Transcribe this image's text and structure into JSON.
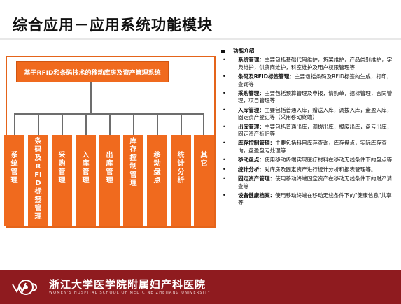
{
  "page": {
    "title": "综合应用－应用系统功能模块"
  },
  "diagram": {
    "banner": "基于RFID和条码技术的移动库房及资产管理系统",
    "modules": [
      "系统管理",
      "条码及RFID标签管理",
      "采购管理",
      "入库管理",
      "出库管理",
      "库存控制管理",
      "移动盘点",
      "统计分析",
      "其它"
    ],
    "color": "#f06a1e"
  },
  "description": {
    "heading": "功能介绍",
    "items": [
      {
        "name": "系统管理：",
        "text": "主要包括基础代码维护，货架维护，产品类别维护，字典维护，供货商维护，科室维护及用户权限管理等"
      },
      {
        "name": "条码及RFID标签管理：",
        "text": "主要包括条码及RFID标签的生成，打印，查询等"
      },
      {
        "name": "采购管理：",
        "text": "主要包括预算管理及申报，请购单，招标管理，合同管理，项目管理等"
      },
      {
        "name": "入库管理：",
        "text": "主要包括普通入库，赠送入库，调拨入库，盘盈入库，固定资产登记等（采用移动终端）"
      },
      {
        "name": "出库管理：",
        "text": "主要包括普通出库，调拨出库，报废出库，盘亏出库，固定资产折旧等"
      },
      {
        "name": "库存控制管理：",
        "text": "主要包括科目库存查询，库存盘点，实际库存查询，盘盈盘亏处理等"
      },
      {
        "name": "移动盘点：",
        "text": "使用移动终端实现医疗材料在移动无线条件下的盘点等"
      },
      {
        "name": "统计分析：",
        "text": "对库房及固定资产进行统计分析和报表管理等。"
      },
      {
        "name": "固定资产管理：",
        "text": "使用移动终端固定资产在移动无线条件下的财产清查等"
      },
      {
        "name": "设备健康档案：",
        "text": "使用移动终端在移动无线条件下的\"健康信息\"共享等"
      }
    ]
  },
  "footer": {
    "hospital_cn": "浙江大学医学院附属妇产科医院",
    "hospital_en": "WOMEN'S HOSPITAL SCHOOL OF MEDICINE ZHEJIANG UNIVERSITY",
    "color": "#8f1b1f"
  }
}
